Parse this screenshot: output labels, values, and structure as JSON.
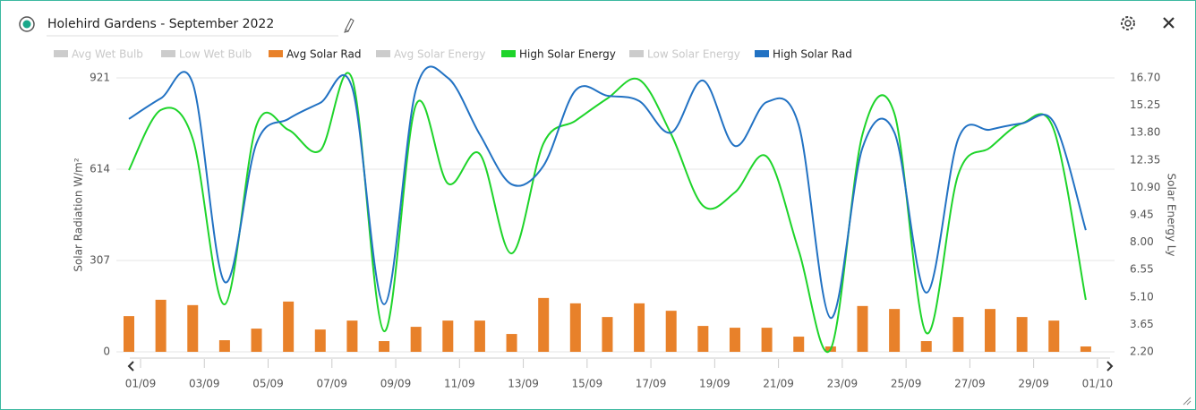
{
  "header": {
    "title": "Holehird Gardens - September 2022"
  },
  "chart_data": {
    "type": "bar",
    "ylabel": "Solar Radiation W/m²",
    "y2label": "Solar Energy Ly",
    "categories": [
      "01/09",
      null,
      "03/09",
      null,
      "05/09",
      null,
      "07/09",
      null,
      "09/09",
      null,
      "11/09",
      null,
      "13/09",
      null,
      "15/09",
      null,
      "17/09",
      null,
      "19/09",
      null,
      "21/09",
      null,
      "23/09",
      null,
      "25/09",
      null,
      "27/09",
      null,
      "29/09",
      null,
      "01/10"
    ],
    "ylim": [
      0,
      921
    ],
    "yticks": [
      0,
      307,
      614,
      921
    ],
    "y2lim": [
      2.2,
      16.7
    ],
    "y2ticks": [
      {
        "value": 2.2,
        "label": "2.20"
      },
      {
        "value": 3.65,
        "label": "3.65"
      },
      {
        "value": 5.1,
        "label": "5.10"
      },
      {
        "value": 6.55,
        "label": "6.55"
      },
      {
        "value": 8,
        "label": "8.00"
      },
      {
        "value": 9.45,
        "label": "9.45"
      },
      {
        "value": 10.9,
        "label": "10.90"
      },
      {
        "value": 12.35,
        "label": "12.35"
      },
      {
        "value": 13.8,
        "label": "13.80"
      },
      {
        "value": 15.25,
        "label": "15.25"
      },
      {
        "value": 16.7,
        "label": "16.70"
      }
    ],
    "grid": true,
    "series": [
      {
        "name": "Avg Wet Bulb",
        "color": "#cccccc",
        "hidden": true
      },
      {
        "name": "Low Wet Bulb",
        "color": "#cccccc",
        "hidden": true
      },
      {
        "name": "Avg Solar Rad",
        "color": "#e8812a",
        "type": "bar",
        "values": [
          120,
          175,
          157,
          39,
          78,
          169,
          75,
          105,
          36,
          84,
          105,
          105,
          60,
          181,
          163,
          117,
          163,
          138,
          87,
          81,
          81,
          51,
          18,
          154,
          144,
          36,
          117,
          144,
          117,
          105,
          18
        ]
      },
      {
        "name": "Avg Solar Energy",
        "color": "#cccccc",
        "hidden": true
      },
      {
        "name": "High Solar Energy",
        "color": "#1ed42a",
        "type": "line",
        "axis": "y2",
        "values": [
          11.82,
          15.0,
          13.48,
          4.71,
          14.19,
          13.95,
          12.86,
          16.65,
          3.29,
          15.28,
          11.11,
          12.67,
          7.41,
          13.24,
          14.43,
          15.61,
          16.6,
          13.72,
          9.93,
          10.64,
          12.53,
          7.56,
          2.34,
          13.72,
          14.81,
          3.2,
          11.58,
          13.01,
          14.29,
          13.95,
          4.95
        ]
      },
      {
        "name": "Low Solar Energy",
        "color": "#cccccc",
        "hidden": true
      },
      {
        "name": "High Solar Rad",
        "color": "#2272c3",
        "type": "line",
        "values": [
          783,
          852,
          903,
          235,
          701,
          783,
          837,
          888,
          160,
          882,
          921,
          731,
          563,
          626,
          879,
          861,
          843,
          737,
          912,
          692,
          840,
          762,
          114,
          686,
          737,
          199,
          716,
          747,
          768,
          771,
          409
        ]
      }
    ]
  }
}
